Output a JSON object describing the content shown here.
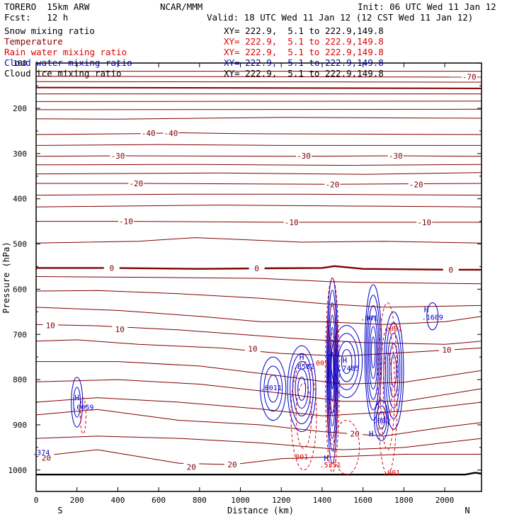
{
  "header": {
    "model": "TORERO  15km ARW",
    "center": "NCAR/MMM",
    "init": "Init: 06 UTC Wed 11 Jan 12",
    "fcst": "Fcst:   12 h",
    "valid": "Valid: 18 UTC Wed 11 Jan 12 (12 CST Wed 11 Jan 12)"
  },
  "fields": [
    {
      "label": "Snow mixing ratio",
      "xy": "XY= 222.9,  5.1 to 222.9,149.8",
      "color": "#000000"
    },
    {
      "label": "Temperature",
      "xy": "XY= 222.9,  5.1 to 222.9,149.8",
      "color": "#8b0000"
    },
    {
      "label": "Rain water mixing ratio",
      "xy": "XY= 222.9,  5.1 to 222.9,149.8",
      "color": "#e00000"
    },
    {
      "label": "Cloud water mixing ratio",
      "xy": "XY= 222.9,  5.1 to 222.9,149.8",
      "color": "#0000cc"
    },
    {
      "label": "Cloud ice mixing ratio",
      "xy": "XY= 222.9,  5.1 to 222.9,149.8",
      "color": "#000000"
    }
  ],
  "chart_data": {
    "type": "cross-section contour",
    "xlabel": "Distance (km)",
    "ylabel": "Pressure (hPa)",
    "xlim": [
      0,
      2180
    ],
    "ylim": [
      1050,
      100
    ],
    "xticks": [
      0,
      200,
      400,
      600,
      800,
      1000,
      1200,
      1400,
      1600,
      1800,
      2000
    ],
    "yticks": [
      100,
      200,
      300,
      400,
      500,
      600,
      700,
      800,
      900,
      1000
    ],
    "endpoints": {
      "left": "S",
      "right": "N"
    },
    "temperature_labels": [
      {
        "text": "-70",
        "x": 2120,
        "p": 130
      },
      {
        "text": "-40",
        "x": 550,
        "p": 255
      },
      {
        "text": "-40",
        "x": 660,
        "p": 255
      },
      {
        "text": "-30",
        "x": 400,
        "p": 305
      },
      {
        "text": "-30",
        "x": 1310,
        "p": 305
      },
      {
        "text": "-30",
        "x": 1760,
        "p": 305
      },
      {
        "text": "-20",
        "x": 490,
        "p": 366
      },
      {
        "text": "-20",
        "x": 1450,
        "p": 368
      },
      {
        "text": "-20",
        "x": 1860,
        "p": 368
      },
      {
        "text": "-10",
        "x": 440,
        "p": 450
      },
      {
        "text": "-10",
        "x": 1250,
        "p": 452
      },
      {
        "text": "-10",
        "x": 1900,
        "p": 452
      },
      {
        "text": "0",
        "x": 370,
        "p": 553
      },
      {
        "text": "0",
        "x": 1080,
        "p": 554
      },
      {
        "text": "0",
        "x": 2030,
        "p": 557
      },
      {
        "text": "10",
        "x": 70,
        "p": 680
      },
      {
        "text": "10",
        "x": 410,
        "p": 689
      },
      {
        "text": "10",
        "x": 1060,
        "p": 732
      },
      {
        "text": "10",
        "x": 2010,
        "p": 734
      },
      {
        "text": "20",
        "x": 50,
        "p": 973
      },
      {
        "text": "20",
        "x": 760,
        "p": 993
      },
      {
        "text": "20",
        "x": 960,
        "p": 988
      },
      {
        "text": "20",
        "x": 1560,
        "p": 920
      }
    ],
    "max_markers": [
      {
        "text": "H",
        "x": 200,
        "p": 840
      },
      {
        "text": "H",
        "x": 1300,
        "p": 750
      },
      {
        "text": "H",
        "x": 1510,
        "p": 757
      },
      {
        "text": "H",
        "x": 1420,
        "p": 974
      },
      {
        "text": "H",
        "x": 1910,
        "p": 645
      },
      {
        "text": "H",
        "x": 1640,
        "p": 920
      }
    ],
    "value_labels": [
      {
        "text": ".0059",
        "x": 230,
        "p": 860,
        "color": "#0000cc"
      },
      {
        "text": ".374",
        "x": 25,
        "p": 960,
        "color": "#0000cc"
      },
      {
        "text": ".0011",
        "x": 1150,
        "p": 817,
        "color": "#0000cc"
      },
      {
        "text": ".8582",
        "x": 1310,
        "p": 770,
        "color": "#0000cc"
      },
      {
        "text": ".001",
        "x": 1390,
        "p": 762,
        "color": "#e00000"
      },
      {
        "text": ".7485",
        "x": 1530,
        "p": 774,
        "color": "#0000cc"
      },
      {
        "text": ".001",
        "x": 1630,
        "p": 663,
        "color": "#0000cc"
      },
      {
        "text": ".001",
        "x": 1750,
        "p": 686,
        "color": "#e00000"
      },
      {
        "text": ".1609",
        "x": 1940,
        "p": 661,
        "color": "#0000cc"
      },
      {
        "text": ".001",
        "x": 1690,
        "p": 890,
        "color": "#0000cc"
      },
      {
        "text": ".001",
        "x": 1290,
        "p": 970,
        "color": "#e00000"
      },
      {
        "text": ".5351",
        "x": 1440,
        "p": 988,
        "color": "#e00000"
      },
      {
        "text": ".001",
        "x": 1740,
        "p": 1005,
        "color": "#e00000"
      }
    ]
  }
}
